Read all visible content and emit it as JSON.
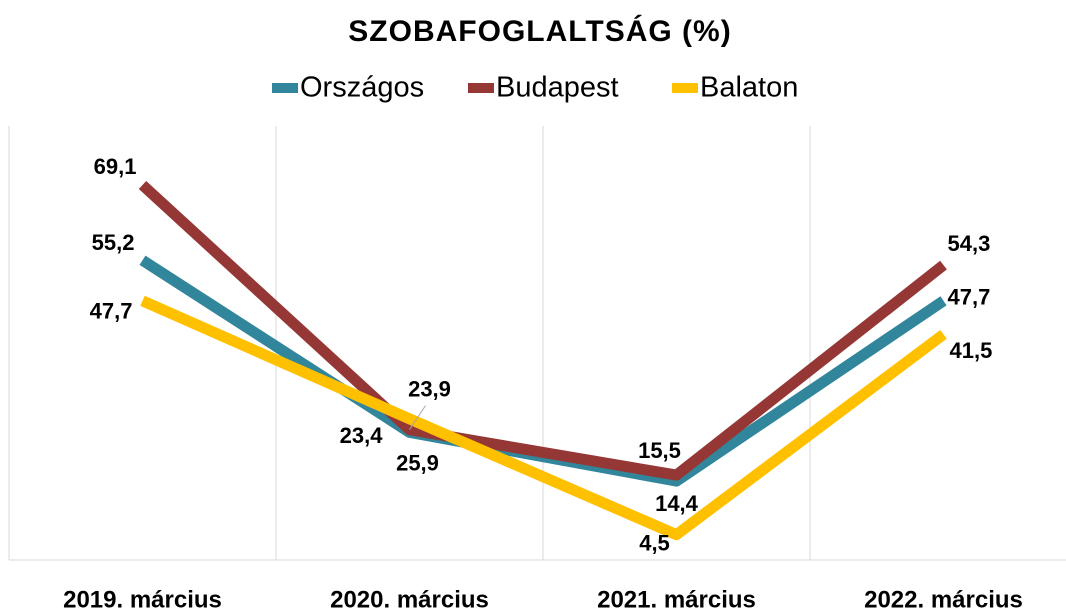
{
  "chart_data": {
    "type": "line",
    "title": "SZOBAFOGLALTSÁG (%)",
    "categories": [
      "2019. március",
      "2020. március",
      "2021. március",
      "2022. március"
    ],
    "series": [
      {
        "name": "Országos",
        "color": "#31869b",
        "values": [
          55.2,
          23.4,
          14.4,
          47.7
        ],
        "value_labels": [
          "55,2",
          "23,4",
          "14,4",
          "47,7"
        ]
      },
      {
        "name": "Budapest",
        "color": "#953735",
        "values": [
          69.1,
          23.9,
          15.5,
          54.3
        ],
        "value_labels": [
          "69,1",
          "23,9",
          "15,5",
          "54,3"
        ]
      },
      {
        "name": "Balaton",
        "color": "#ffc000",
        "values": [
          47.7,
          25.9,
          4.5,
          41.5
        ],
        "value_labels": [
          "47,7",
          "25,9",
          "4,5",
          "41,5"
        ]
      }
    ],
    "ylim": [
      0,
      80
    ],
    "legend": "top"
  }
}
